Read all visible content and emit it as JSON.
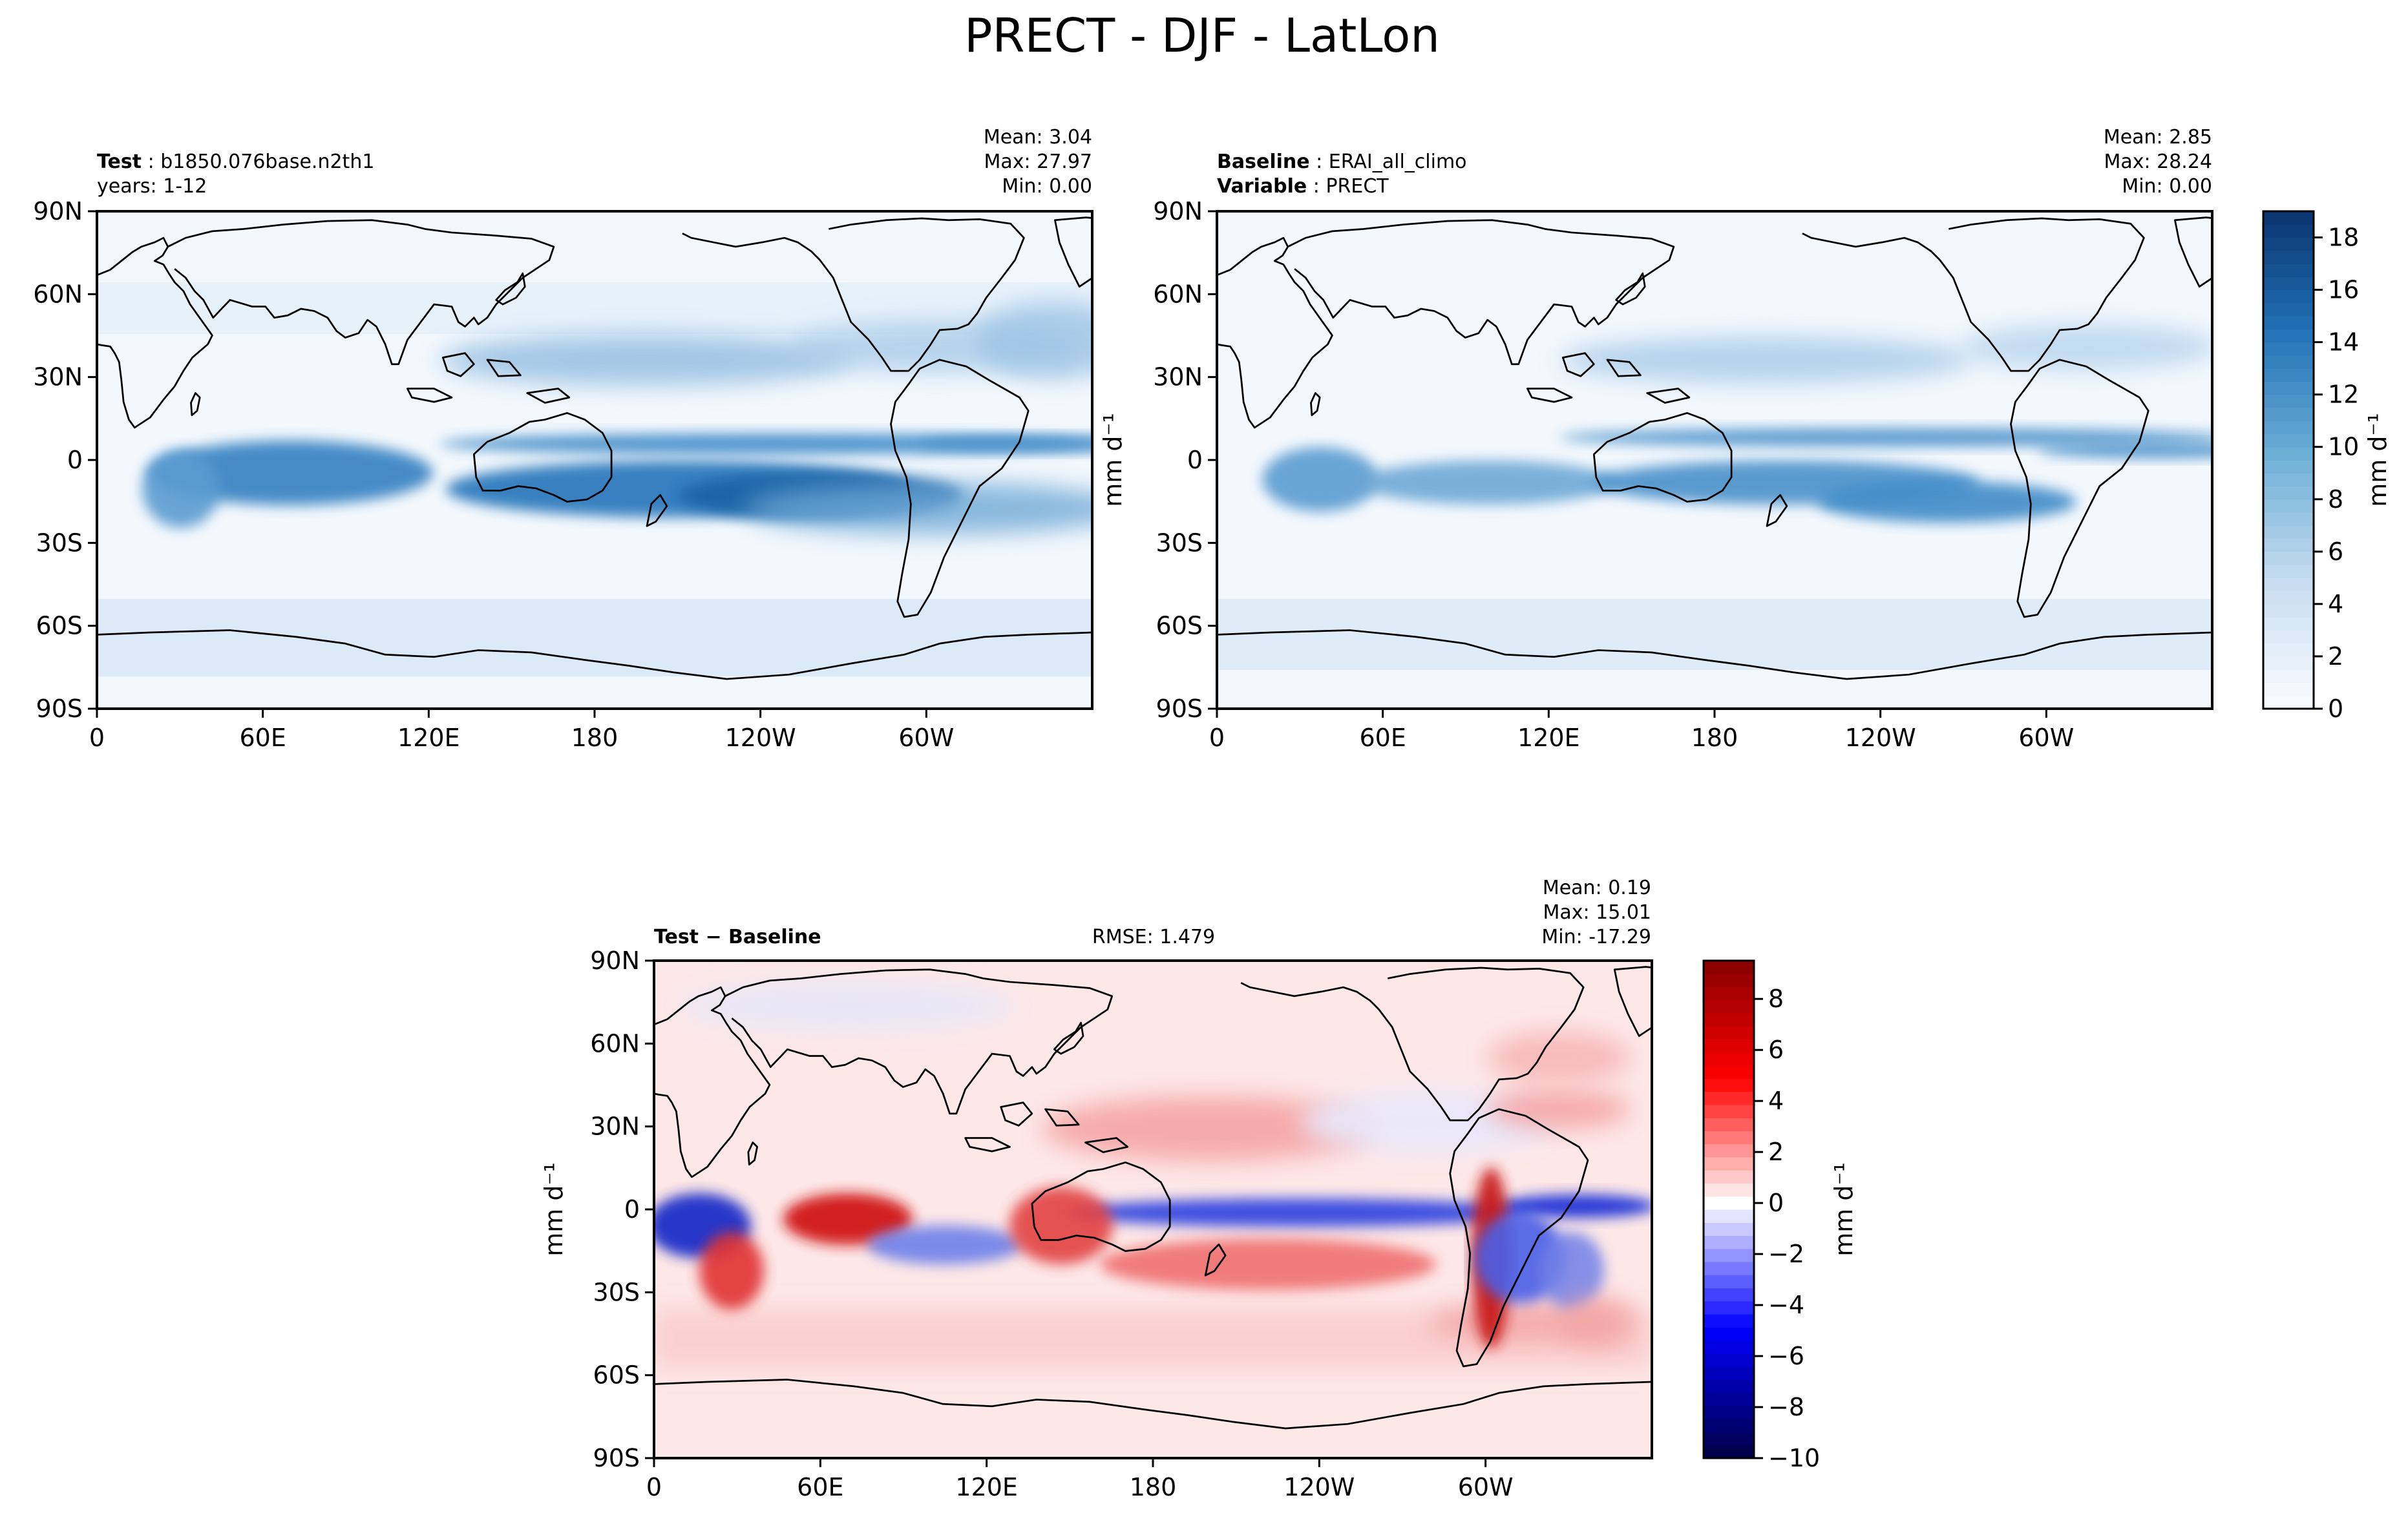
{
  "figure": {
    "title": "PRECT - DJF - LatLon"
  },
  "panels": {
    "test": {
      "label_bold": "Test",
      "label_value": "b1850.076base.n2th1",
      "line2": "years: 1-12",
      "mean": "Mean:  3.04",
      "max": "Max: 27.97",
      "min": "Min:  0.00"
    },
    "baseline": {
      "label_bold": "Baseline",
      "label_value": "ERAI_all_climo",
      "line2_bold": "Variable",
      "line2_value": "PRECT",
      "mean": "Mean:  2.85",
      "max": "Max: 28.24",
      "min": "Min:  0.00"
    },
    "diff": {
      "label": "Test − Baseline",
      "rmse": "RMSE: 1.479",
      "mean": "Mean:  0.19",
      "max": "Max: 15.01",
      "min": "Min: -17.29"
    }
  },
  "units": "mm d⁻¹",
  "chart_data": [
    {
      "type": "heatmap",
      "title": "Test : b1850.076base.n2th1",
      "x_ticks": [
        "0",
        "60E",
        "120E",
        "180",
        "120W",
        "60W"
      ],
      "y_ticks": [
        "90N",
        "60N",
        "30N",
        "0",
        "30S",
        "60S",
        "90S"
      ],
      "xlim": [
        0,
        360
      ],
      "ylim": [
        -90,
        90
      ],
      "stats": {
        "mean": 3.04,
        "max": 27.97,
        "min": 0.0
      },
      "colormap": "Blues",
      "colorbar": {
        "ticks": [
          0,
          2,
          4,
          6,
          8,
          10,
          12,
          14,
          16,
          18
        ],
        "range": [
          0,
          19
        ],
        "label": "mm d⁻¹"
      }
    },
    {
      "type": "heatmap",
      "title": "Baseline : ERAI_all_climo",
      "x_ticks": [
        "0",
        "60E",
        "120E",
        "180",
        "120W",
        "60W"
      ],
      "y_ticks": [
        "90N",
        "60N",
        "30N",
        "0",
        "30S",
        "60S",
        "90S"
      ],
      "xlim": [
        0,
        360
      ],
      "ylim": [
        -90,
        90
      ],
      "stats": {
        "mean": 2.85,
        "max": 28.24,
        "min": 0.0
      },
      "colormap": "Blues",
      "colorbar": {
        "ticks": [
          0,
          2,
          4,
          6,
          8,
          10,
          12,
          14,
          16,
          18
        ],
        "range": [
          0,
          19
        ],
        "label": "mm d⁻¹"
      }
    },
    {
      "type": "heatmap",
      "title": "Test − Baseline",
      "x_ticks": [
        "0",
        "60E",
        "120E",
        "180",
        "120W",
        "60W"
      ],
      "y_ticks": [
        "90N",
        "60N",
        "30N",
        "0",
        "30S",
        "60S",
        "90S"
      ],
      "xlim": [
        0,
        360
      ],
      "ylim": [
        -90,
        90
      ],
      "stats": {
        "mean": 0.19,
        "max": 15.01,
        "min": -17.29,
        "rmse": 1.479
      },
      "colormap": "seismic",
      "colorbar": {
        "ticks": [
          -10,
          -8,
          -6,
          -4,
          -2,
          0,
          2,
          4,
          6,
          8
        ],
        "range": [
          -10,
          9.5
        ],
        "label": "mm d⁻¹"
      }
    }
  ]
}
